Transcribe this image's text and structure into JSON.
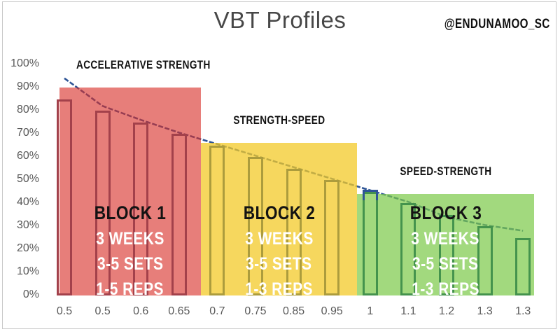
{
  "title": "VBT Profiles",
  "watermark": "@ENDUNAMOO_SC",
  "chart_data": {
    "type": "bar",
    "title": "VBT Profiles",
    "categories": [
      "0.5",
      "0.5",
      "0.6",
      "0.65",
      "0.7",
      "0.75",
      "0.85",
      "0.95",
      "1",
      "1.1",
      "1.2",
      "1.3",
      "1.3"
    ],
    "values": [
      85,
      80,
      75,
      70,
      65,
      60,
      55,
      50,
      45,
      40,
      35,
      30,
      25
    ],
    "ylim": [
      0,
      100
    ],
    "y_tick_labels": [
      "100%",
      "90%",
      "80%",
      "70%",
      "60%",
      "50%",
      "40%",
      "30%",
      "20%",
      "10%",
      "0%"
    ],
    "grid": false,
    "legend": "none",
    "axis_color": "#595959",
    "trend_line": {
      "style": "dashed",
      "color": "#2E5596",
      "values": [
        94,
        82,
        76,
        70.5,
        65.5,
        60.5,
        55.5,
        50.5,
        45.5,
        40.5,
        34,
        30.5,
        28
      ]
    },
    "highlight_marker": {
      "category_index": 8,
      "color": "#2E5596"
    },
    "blocks": [
      {
        "zone_label": "ACCELERATIVE STRENGTH",
        "title": "BLOCK 1",
        "lines": [
          "3 WEEKS",
          "3-5 SETS",
          "1-5 REPS"
        ],
        "fill": "#D92F28",
        "fill_alpha": 0.62,
        "bar_border": "#A3414B",
        "top_pct": 90,
        "x_start_frac": 0.0315,
        "x_end_frac": 0.308,
        "cat_first": 0,
        "cat_last": 3
      },
      {
        "zone_label": "STRENGTH-SPEED",
        "title": "BLOCK 2",
        "lines": [
          "3 WEEKS",
          "3-5 SETS",
          "1-3 REPS"
        ],
        "fill": "#F3C928",
        "fill_alpha": 0.75,
        "bar_border": "#AC9C3D",
        "top_pct": 66,
        "x_start_frac": 0.308,
        "x_end_frac": 0.614,
        "cat_first": 4,
        "cat_last": 7
      },
      {
        "zone_label": "SPEED-STRENGTH",
        "title": "BLOCK 3",
        "lines": [
          "3 WEEKS",
          "3-5 SETS",
          "1-3 REPS"
        ],
        "fill": "#7BC947",
        "fill_alpha": 0.7,
        "bar_border": "#44934D",
        "top_pct": 44,
        "x_start_frac": 0.614,
        "x_end_frac": 0.96,
        "cat_first": 8,
        "cat_last": 12
      }
    ]
  }
}
